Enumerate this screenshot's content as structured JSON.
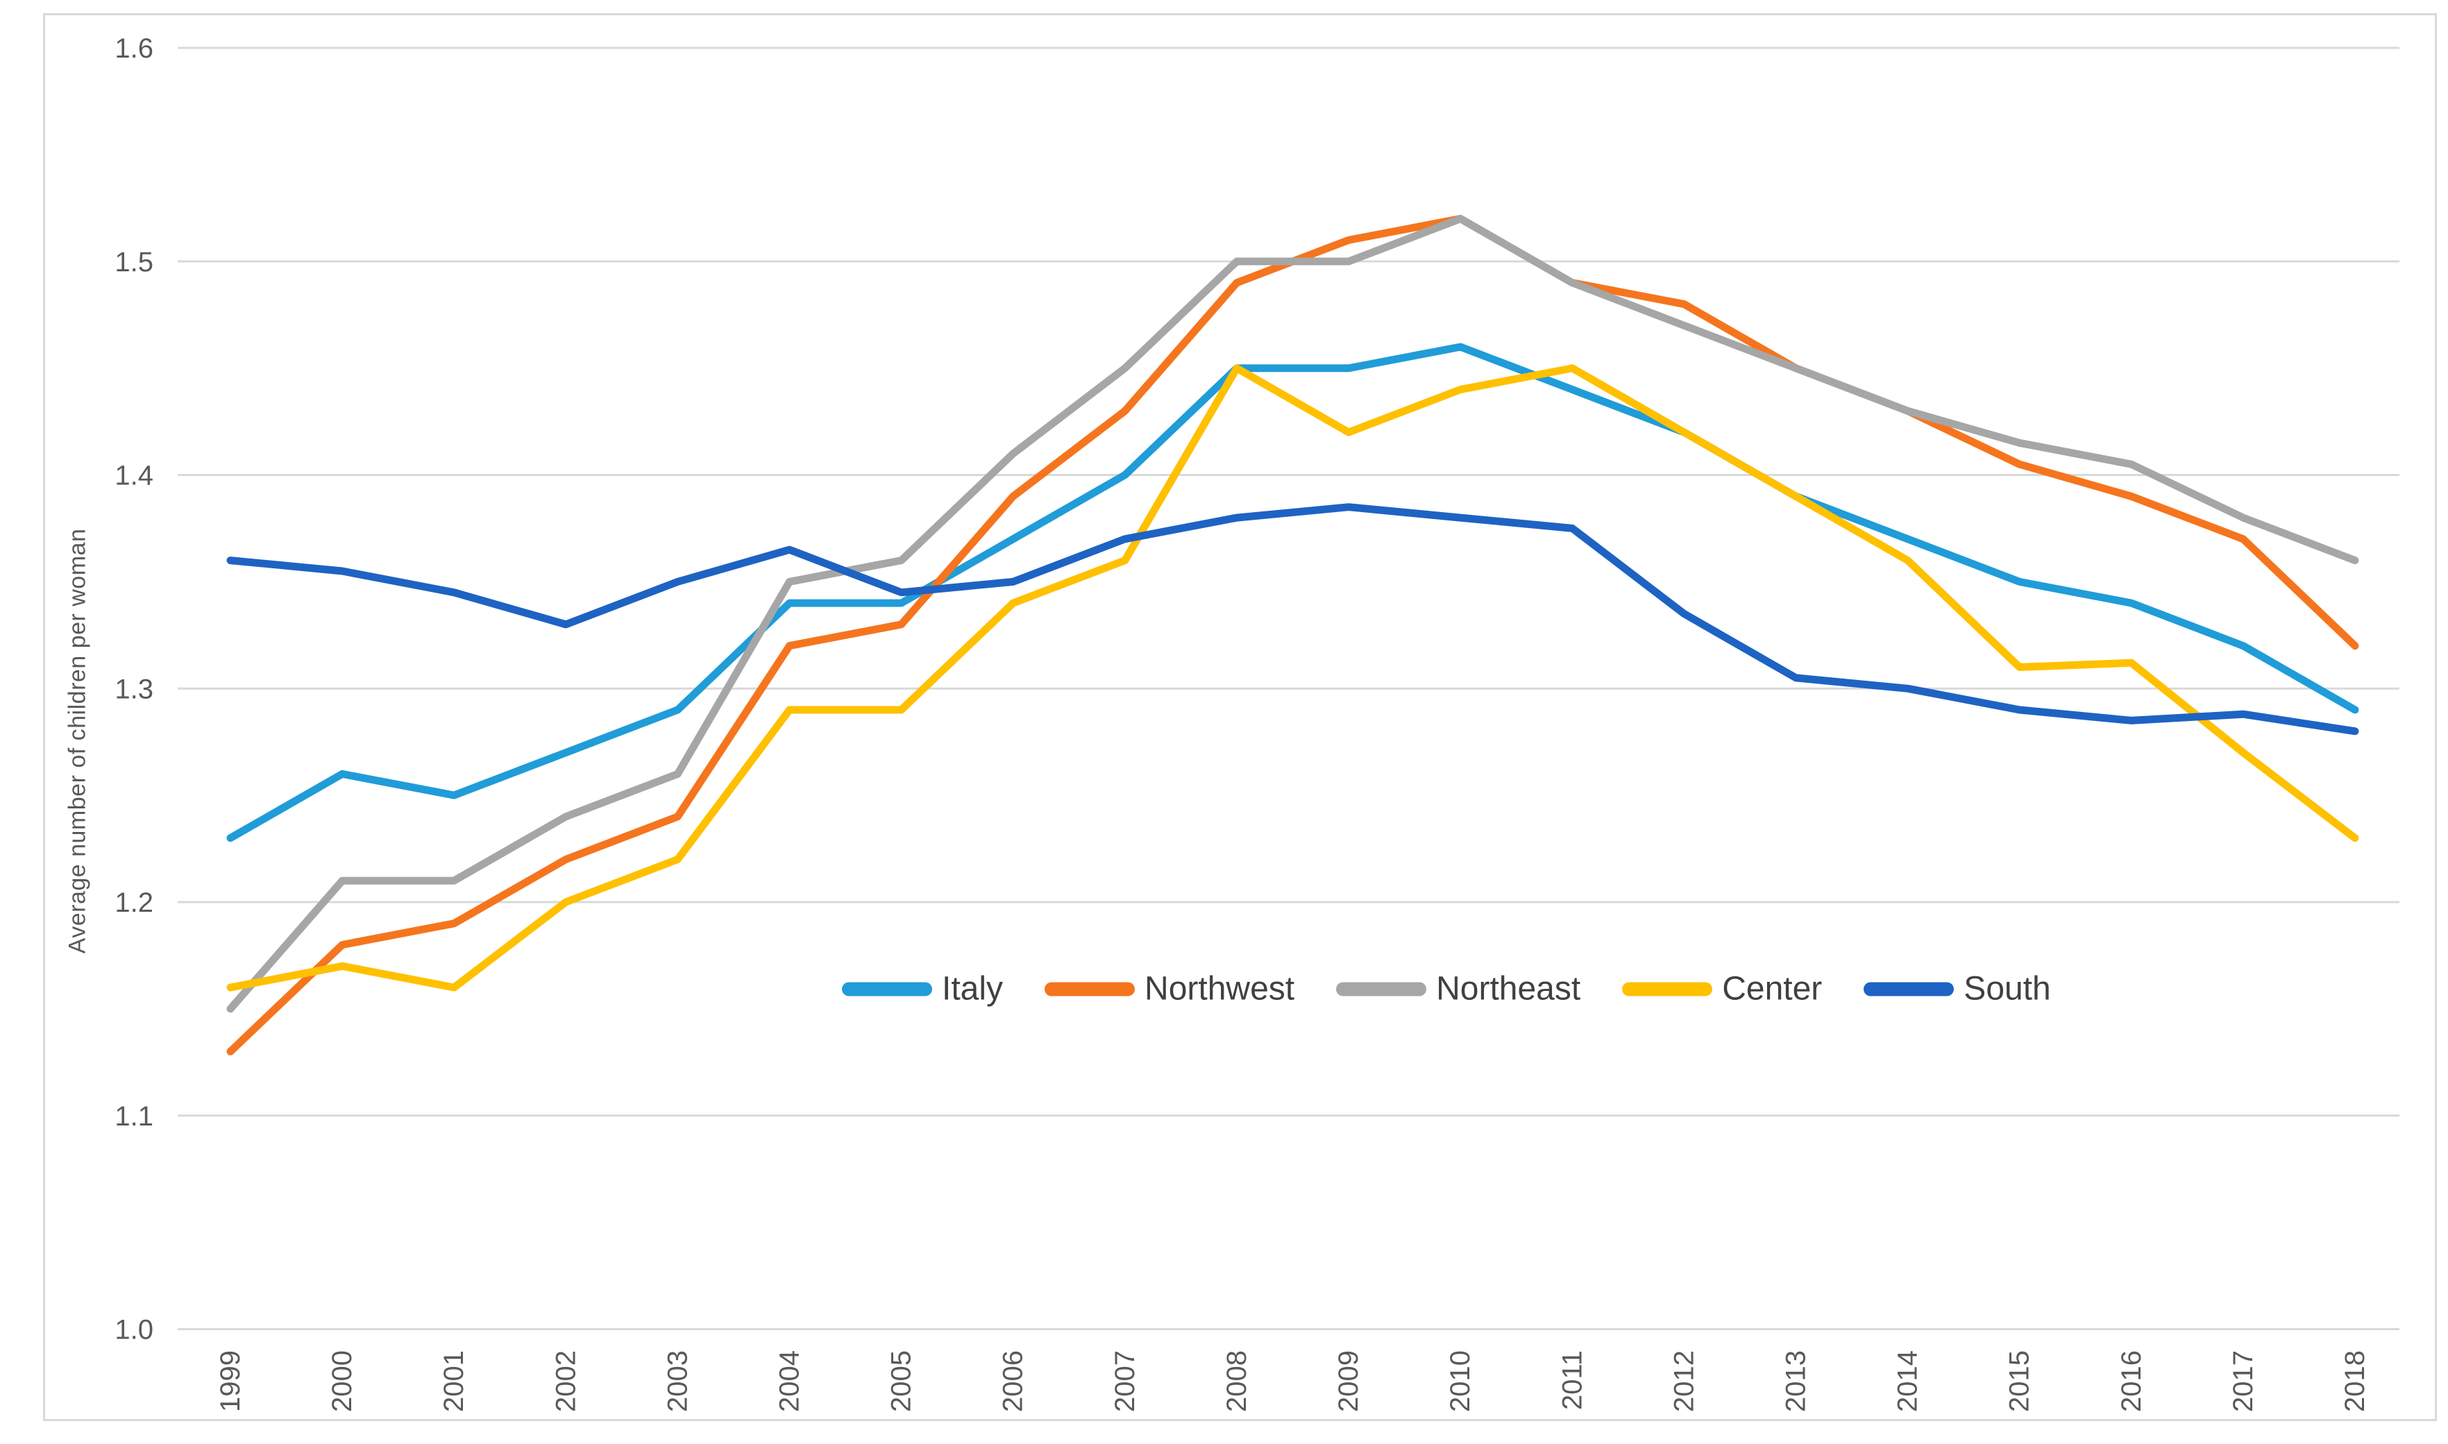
{
  "chart_data": {
    "type": "line",
    "title": "",
    "xlabel": "",
    "ylabel": "Average number of children per woman",
    "categories": [
      "1999",
      "2000",
      "2001",
      "2002",
      "2003",
      "2004",
      "2005",
      "2006",
      "2007",
      "2008",
      "2009",
      "2010",
      "2011",
      "2012",
      "2013",
      "2014",
      "2015",
      "2016",
      "2017",
      "2018"
    ],
    "ylim": [
      1.0,
      1.6
    ],
    "yticks": [
      "1.0",
      "1.1",
      "1.2",
      "1.3",
      "1.4",
      "1.5",
      "1.6"
    ],
    "grid": true,
    "legend_position": "inside-bottom-center",
    "series": [
      {
        "name": "Italy",
        "color": "#209CD8",
        "values": [
          1.23,
          1.26,
          1.25,
          1.27,
          1.29,
          1.34,
          1.34,
          1.37,
          1.4,
          1.45,
          1.45,
          1.46,
          1.44,
          1.42,
          1.39,
          1.37,
          1.35,
          1.34,
          1.32,
          1.29
        ]
      },
      {
        "name": "Northwest",
        "color": "#F5751E",
        "values": [
          1.13,
          1.18,
          1.19,
          1.22,
          1.24,
          1.32,
          1.33,
          1.39,
          1.43,
          1.49,
          1.51,
          1.52,
          1.49,
          1.48,
          1.45,
          1.43,
          1.405,
          1.39,
          1.37,
          1.32
        ]
      },
      {
        "name": "Northeast",
        "color": "#A6A6A6",
        "values": [
          1.15,
          1.21,
          1.21,
          1.24,
          1.26,
          1.35,
          1.36,
          1.41,
          1.45,
          1.5,
          1.5,
          1.52,
          1.49,
          1.47,
          1.45,
          1.43,
          1.415,
          1.405,
          1.38,
          1.36
        ]
      },
      {
        "name": "Center",
        "color": "#FFC000",
        "values": [
          1.16,
          1.17,
          1.16,
          1.2,
          1.22,
          1.29,
          1.29,
          1.34,
          1.36,
          1.45,
          1.42,
          1.44,
          1.45,
          1.42,
          1.39,
          1.36,
          1.31,
          1.312,
          1.27,
          1.23
        ]
      },
      {
        "name": "South",
        "color": "#1E63C3",
        "values": [
          1.36,
          1.355,
          1.345,
          1.33,
          1.35,
          1.365,
          1.345,
          1.35,
          1.37,
          1.38,
          1.385,
          1.38,
          1.375,
          1.335,
          1.305,
          1.3,
          1.29,
          1.285,
          1.288,
          1.28
        ]
      }
    ]
  },
  "style": {
    "background": "#FFFFFF",
    "gridline_color": "#D9D9D9",
    "frame_color": "#D9D9D9",
    "tick_label_color": "#595959",
    "axis_title_color": "#595959",
    "legend_label_color": "#404040"
  }
}
